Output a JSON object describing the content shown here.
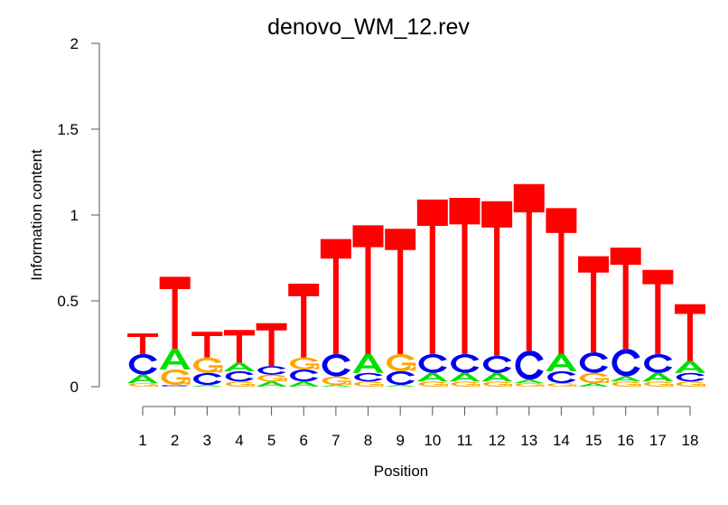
{
  "chart_data": {
    "type": "sequence-logo",
    "title": "denovo_WM_12.rev",
    "xlabel": "Position",
    "ylabel": "Information content",
    "ylim": [
      0,
      2
    ],
    "yticks": [
      "0",
      "0.5",
      "1",
      "1.5",
      "2"
    ],
    "ytick_values": [
      0,
      0.5,
      1,
      1.5,
      2
    ],
    "colors": {
      "A": "#00e000",
      "C": "#0000ee",
      "G": "#ffa500",
      "T": "#ff0000"
    },
    "positions": [
      {
        "label": "1",
        "stack": [
          [
            "G",
            0.02
          ],
          [
            "A",
            0.05
          ],
          [
            "C",
            0.12
          ],
          [
            "T",
            0.12
          ]
        ]
      },
      {
        "label": "2",
        "stack": [
          [
            "C",
            0.01
          ],
          [
            "G",
            0.09
          ],
          [
            "A",
            0.12
          ],
          [
            "T",
            0.42
          ]
        ]
      },
      {
        "label": "3",
        "stack": [
          [
            "A",
            0.01
          ],
          [
            "C",
            0.07
          ],
          [
            "G",
            0.09
          ],
          [
            "T",
            0.15
          ]
        ]
      },
      {
        "label": "4",
        "stack": [
          [
            "G",
            0.03
          ],
          [
            "C",
            0.06
          ],
          [
            "A",
            0.05
          ],
          [
            "T",
            0.19
          ]
        ]
      },
      {
        "label": "5",
        "stack": [
          [
            "A",
            0.03
          ],
          [
            "G",
            0.04
          ],
          [
            "C",
            0.05
          ],
          [
            "T",
            0.25
          ]
        ]
      },
      {
        "label": "6",
        "stack": [
          [
            "A",
            0.03
          ],
          [
            "C",
            0.07
          ],
          [
            "G",
            0.07
          ],
          [
            "T",
            0.43
          ]
        ]
      },
      {
        "label": "7",
        "stack": [
          [
            "A",
            0.01
          ],
          [
            "G",
            0.05
          ],
          [
            "C",
            0.13
          ],
          [
            "T",
            0.67
          ]
        ]
      },
      {
        "label": "8",
        "stack": [
          [
            "G",
            0.03
          ],
          [
            "C",
            0.05
          ],
          [
            "A",
            0.11
          ],
          [
            "T",
            0.75
          ]
        ]
      },
      {
        "label": "9",
        "stack": [
          [
            "A",
            0.01
          ],
          [
            "C",
            0.08
          ],
          [
            "G",
            0.1
          ],
          [
            "T",
            0.73
          ]
        ]
      },
      {
        "label": "10",
        "stack": [
          [
            "G",
            0.03
          ],
          [
            "A",
            0.05
          ],
          [
            "C",
            0.11
          ],
          [
            "T",
            0.9
          ]
        ]
      },
      {
        "label": "11",
        "stack": [
          [
            "G",
            0.03
          ],
          [
            "A",
            0.05
          ],
          [
            "C",
            0.11
          ],
          [
            "T",
            0.91
          ]
        ]
      },
      {
        "label": "12",
        "stack": [
          [
            "G",
            0.03
          ],
          [
            "A",
            0.05
          ],
          [
            "C",
            0.1
          ],
          [
            "T",
            0.9
          ]
        ]
      },
      {
        "label": "13",
        "stack": [
          [
            "G",
            0.02
          ],
          [
            "A",
            0.02
          ],
          [
            "C",
            0.17
          ],
          [
            "T",
            0.97
          ]
        ]
      },
      {
        "label": "14",
        "stack": [
          [
            "G",
            0.02
          ],
          [
            "C",
            0.07
          ],
          [
            "A",
            0.1
          ],
          [
            "T",
            0.85
          ]
        ]
      },
      {
        "label": "15",
        "stack": [
          [
            "A",
            0.02
          ],
          [
            "G",
            0.06
          ],
          [
            "C",
            0.12
          ],
          [
            "T",
            0.56
          ]
        ]
      },
      {
        "label": "16",
        "stack": [
          [
            "G",
            0.03
          ],
          [
            "A",
            0.03
          ],
          [
            "C",
            0.16
          ],
          [
            "T",
            0.59
          ]
        ]
      },
      {
        "label": "17",
        "stack": [
          [
            "G",
            0.03
          ],
          [
            "A",
            0.05
          ],
          [
            "C",
            0.11
          ],
          [
            "T",
            0.49
          ]
        ]
      },
      {
        "label": "18",
        "stack": [
          [
            "G",
            0.03
          ],
          [
            "C",
            0.05
          ],
          [
            "A",
            0.07
          ],
          [
            "T",
            0.33
          ]
        ]
      }
    ]
  }
}
